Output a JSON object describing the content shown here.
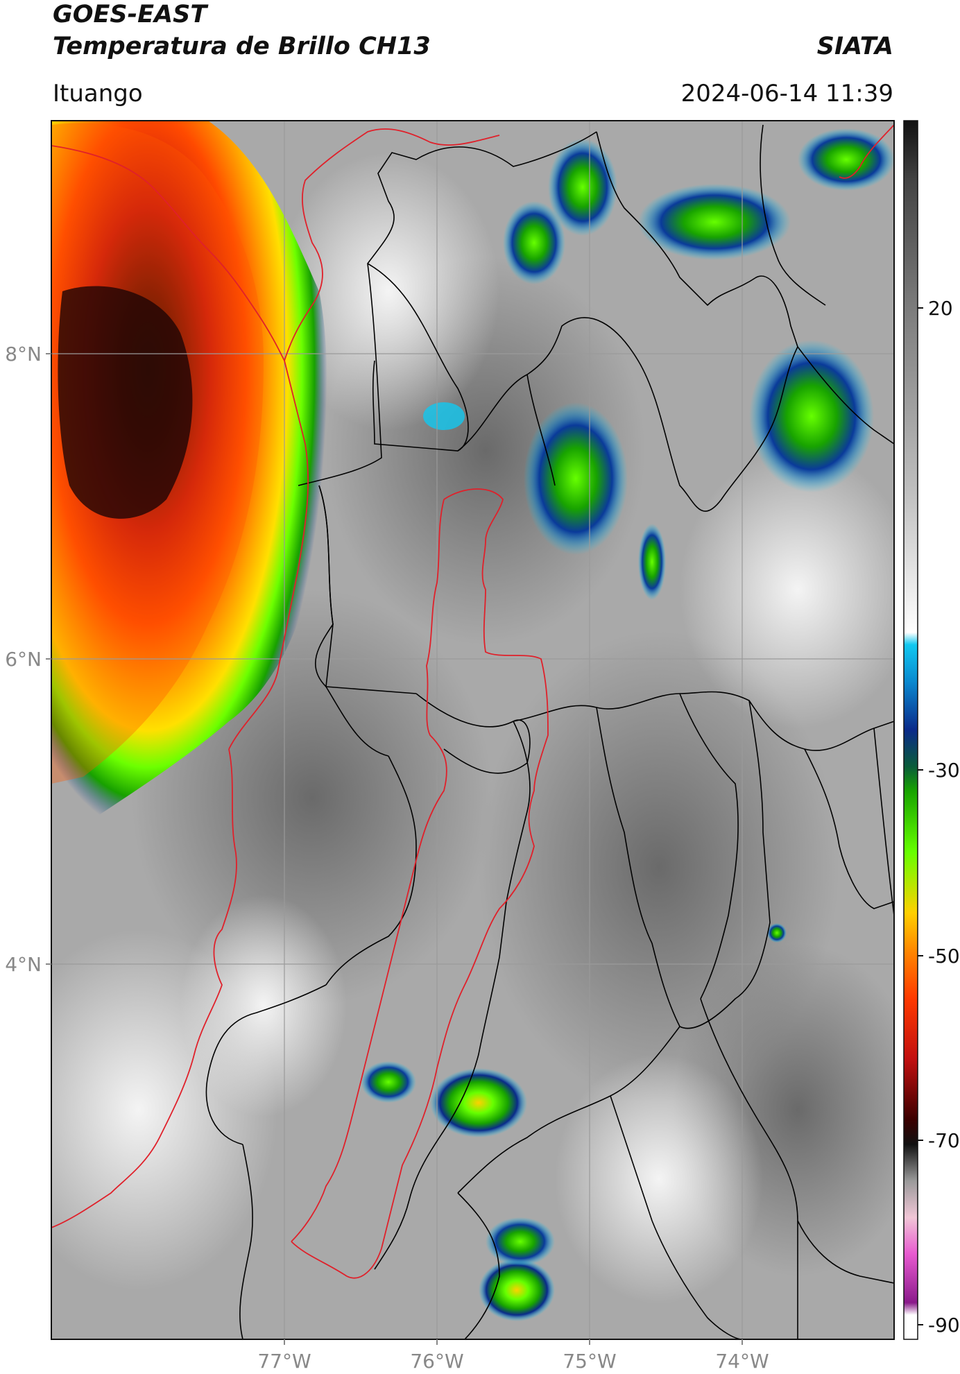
{
  "header": {
    "satellite": "GOES-EAST",
    "product": "Temperatura de Brillo CH13",
    "agency": "SIATA",
    "location": "Ituango",
    "datetime": "2024-06-14 11:39"
  },
  "map": {
    "lat_ticks": [
      "8°N",
      "6°N",
      "4°N"
    ],
    "lon_ticks": [
      "77°W",
      "76°W",
      "75°W",
      "74°W"
    ],
    "gridlines": true,
    "colors": {
      "border_country": "#e0202a",
      "border_region": "#000000",
      "gridline": "#9a9a9a"
    }
  },
  "colorbar": {
    "ticks": [
      "20",
      "-30",
      "-50",
      "-70",
      "-90"
    ],
    "orientation": "vertical",
    "position": "right"
  }
}
